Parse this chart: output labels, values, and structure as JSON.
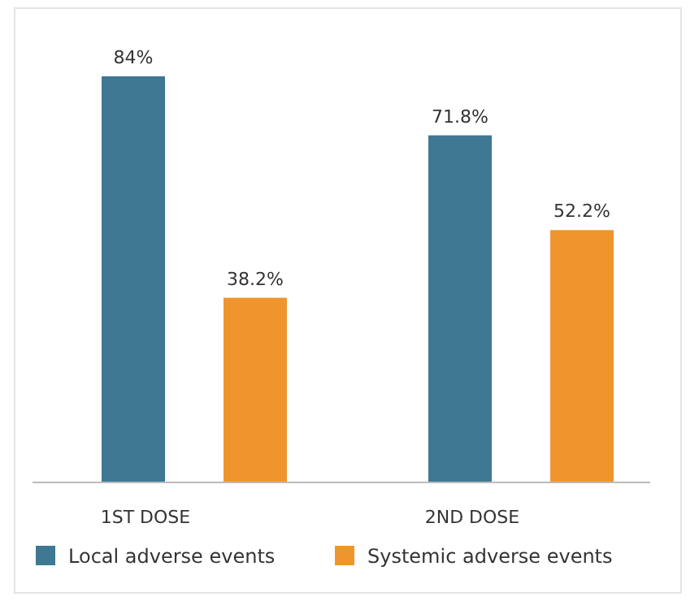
{
  "chart_data": {
    "type": "bar",
    "categories": [
      "1ST DOSE",
      "2ND DOSE"
    ],
    "series": [
      {
        "name": "Local adverse events",
        "color": "#3e7893",
        "values": [
          84,
          71.8
        ],
        "value_labels": [
          "84%",
          "71.8%"
        ]
      },
      {
        "name": "Systemic adverse events",
        "color": "#f0952e",
        "values": [
          38.2,
          52.2
        ],
        "value_labels": [
          "38.2%",
          "52.2%"
        ]
      }
    ],
    "legend": "bottom"
  }
}
